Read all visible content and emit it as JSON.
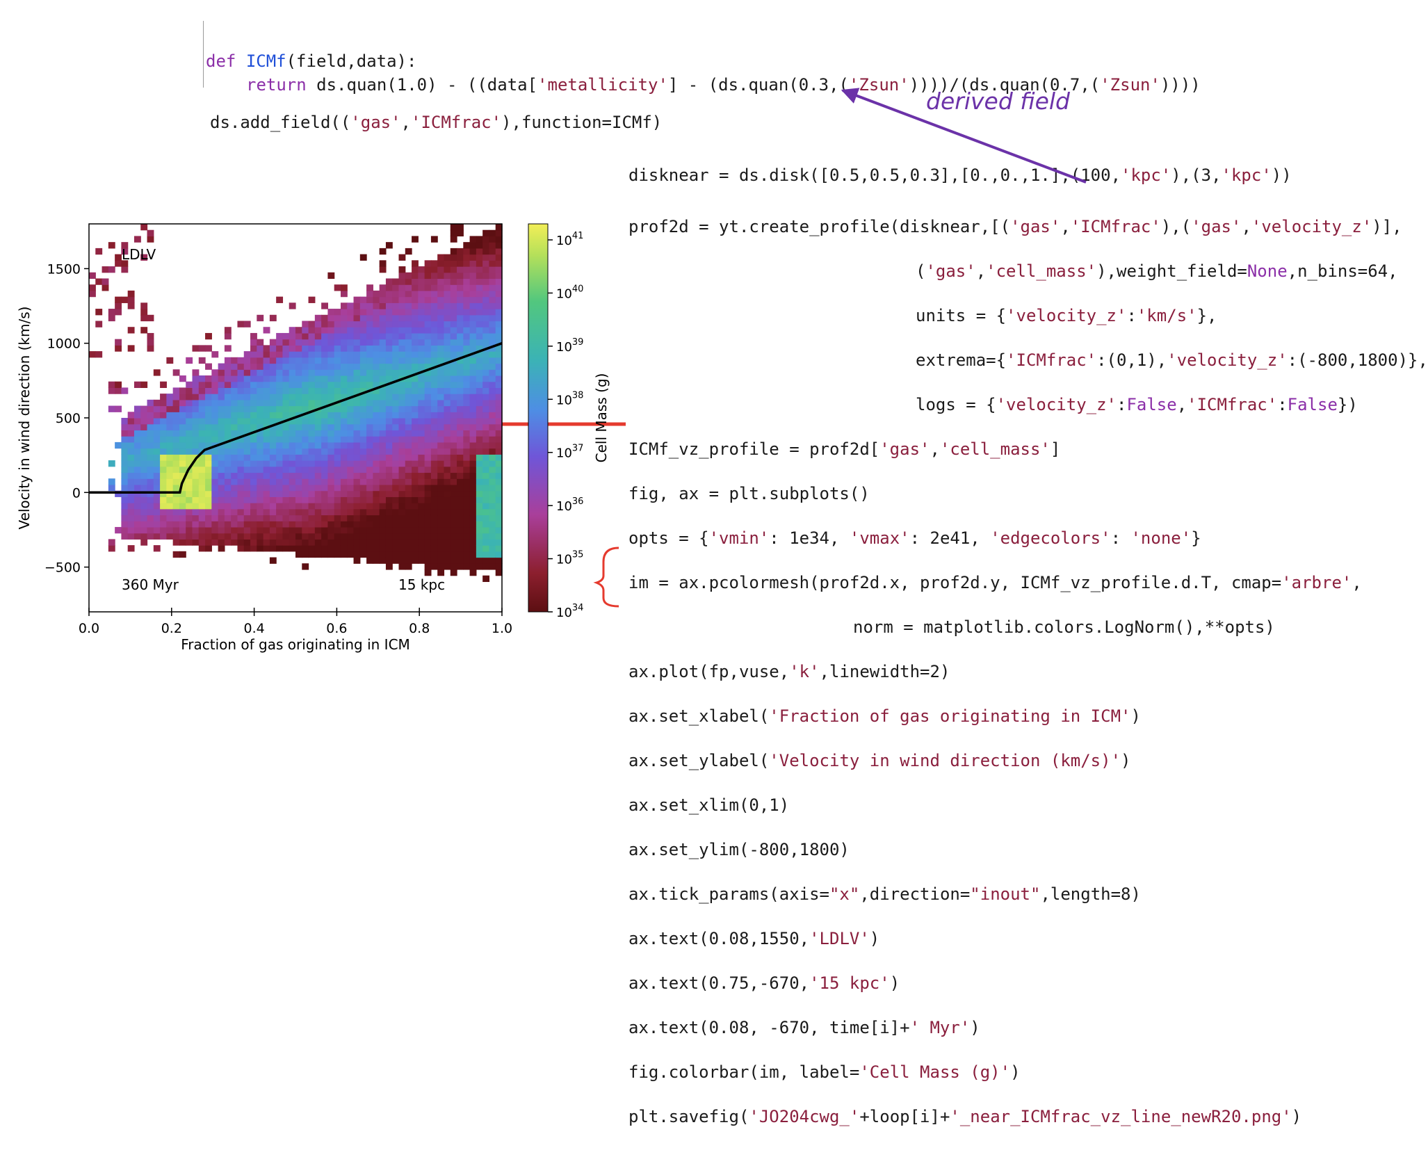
{
  "code_top": {
    "line_def": "def ICMf(field,data):",
    "def_kw": "def",
    "def_name": "ICMf",
    "def_rest": "(field,data):",
    "return_kw": "return",
    "return_a": " ds.quan(1.0) - ((data[",
    "return_s1": "'metallicity'",
    "return_b": "] - (ds.quan(0.3,(",
    "return_s2": "'Zsun'",
    "return_c": "))))/(ds.quan(0.7,(",
    "return_s3": "'Zsun'",
    "return_d": "))))",
    "add_a": "ds.add_field((",
    "add_s1": "'gas'",
    "add_b": ",",
    "add_s2": "'ICMfrac'",
    "add_c": "),function=ICMf)"
  },
  "annotation": {
    "derived_field": "derived field"
  },
  "code_right": {
    "l1a": "disknear = ds.disk([0.5,0.5,0.3],[0.,0.,1.],(100,",
    "l1s1": "'kpc'",
    "l1b": "),(3,",
    "l1s2": "'kpc'",
    "l1c": "))",
    "l2a": "prof2d = yt.create_profile(disknear,[(",
    "l2s1": "'gas'",
    "l2b": ",",
    "l2s2": "'ICMfrac'",
    "l2c": "),(",
    "l2s3": "'gas'",
    "l2d": ",",
    "l2s4": "'velocity_z'",
    "l2e": ")],",
    "l3a": "(",
    "l3s1": "'gas'",
    "l3b": ",",
    "l3s2": "'cell_mass'",
    "l3c": "),weight_field=",
    "l3k": "None",
    "l3d": ",n_bins=64,",
    "l4a": "units = {",
    "l4s1": "'velocity_z'",
    "l4b": ":",
    "l4s2": "'km/s'",
    "l4c": "},",
    "l5a": "extrema={",
    "l5s1": "'ICMfrac'",
    "l5b": ":(0,1),",
    "l5s2": "'velocity_z'",
    "l5c": ":(-800,1800)},",
    "l6a": "logs = {",
    "l6s1": "'velocity_z'",
    "l6b": ":",
    "l6k1": "False",
    "l6c": ",",
    "l6s2": "'ICMfrac'",
    "l6d": ":",
    "l6k2": "False",
    "l6e": "})",
    "l7a": "ICMf_vz_profile = prof2d[",
    "l7s1": "'gas'",
    "l7b": ",",
    "l7s2": "'cell_mass'",
    "l7c": "]",
    "l8": "fig, ax = plt.subplots()",
    "l9a": "opts = {",
    "l9s1": "'vmin'",
    "l9b": ": 1e34, ",
    "l9s2": "'vmax'",
    "l9c": ": 2e41, ",
    "l9s3": "'edgecolors'",
    "l9d": ": ",
    "l9s4": "'none'",
    "l9e": "}",
    "l10a": "im = ax.pcolormesh(prof2d.x, prof2d.y, ICMf_vz_profile.d.T, cmap=",
    "l10s": "'arbre'",
    "l10b": ",",
    "l11": "norm = matplotlib.colors.LogNorm(),**opts)",
    "l12a": "ax.plot(fp,vuse,",
    "l12s": "'k'",
    "l12b": ",linewidth=2)",
    "l13a": "ax.set_xlabel(",
    "l13s": "'Fraction of gas originating in ICM'",
    "l13b": ")",
    "l14a": "ax.set_ylabel(",
    "l14s": "'Velocity in wind direction (km/s)'",
    "l14b": ")",
    "l15": "ax.set_xlim(0,1)",
    "l16": "ax.set_ylim(-800,1800)",
    "l17a": "ax.tick_params(axis=",
    "l17s1": "\"x\"",
    "l17b": ",direction=",
    "l17s2": "\"inout\"",
    "l17c": ",length=8)",
    "l18a": "ax.text(0.08,1550,",
    "l18s": "'LDLV'",
    "l18b": ")",
    "l19a": "ax.text(0.75,-670,",
    "l19s": "'15 kpc'",
    "l19b": ")",
    "l20a": "ax.text(0.08, -670, time[i]+",
    "l20s": "' Myr'",
    "l20b": ")",
    "l21a": "fig.colorbar(im, label=",
    "l21s": "'Cell Mass (g)'",
    "l21b": ")",
    "l22a": "plt.savefig(",
    "l22s1": "'JO204cwg_'",
    "l22b": "+loop[i]+",
    "l22s2": "'_near_ICMfrac_vz_line_newR20.png'",
    "l22c": ")"
  },
  "colors": {
    "keyword": "#8b2fa8",
    "function": "#1f4fd8",
    "string": "#8a1f3d",
    "annotation": "#6b32a8",
    "arrow_purple": "#6b32a8",
    "arrow_red": "#e53a2e"
  },
  "chart_data": {
    "type": "heatmap",
    "xlabel": "Fraction of gas originating in ICM",
    "ylabel": "Velocity in wind direction (km/s)",
    "xlim": [
      0,
      1
    ],
    "ylim": [
      -800,
      1800
    ],
    "x_ticks": [
      "0.0",
      "0.2",
      "0.4",
      "0.6",
      "0.8",
      "1.0"
    ],
    "y_ticks": [
      "−500",
      "0",
      "500",
      "1000",
      "1500"
    ],
    "annotations": {
      "top_left": "LDLV",
      "bottom_left": "360 Myr",
      "bottom_right": "15 kpc"
    },
    "colorbar": {
      "label": "Cell Mass (g)",
      "scale": "log",
      "range": [
        1e+34,
        2e+41
      ],
      "ticks": [
        {
          "base": "10",
          "exp": "34"
        },
        {
          "base": "10",
          "exp": "35"
        },
        {
          "base": "10",
          "exp": "36"
        },
        {
          "base": "10",
          "exp": "37"
        },
        {
          "base": "10",
          "exp": "38"
        },
        {
          "base": "10",
          "exp": "39"
        },
        {
          "base": "10",
          "exp": "40"
        },
        {
          "base": "10",
          "exp": "41"
        }
      ]
    },
    "line_series": {
      "color": "#000000",
      "points": [
        [
          0.0,
          0
        ],
        [
          0.22,
          0
        ],
        [
          0.225,
          60
        ],
        [
          0.24,
          150
        ],
        [
          0.26,
          230
        ],
        [
          0.28,
          285
        ],
        [
          1.0,
          1000
        ]
      ]
    },
    "cmap": "arbre"
  }
}
